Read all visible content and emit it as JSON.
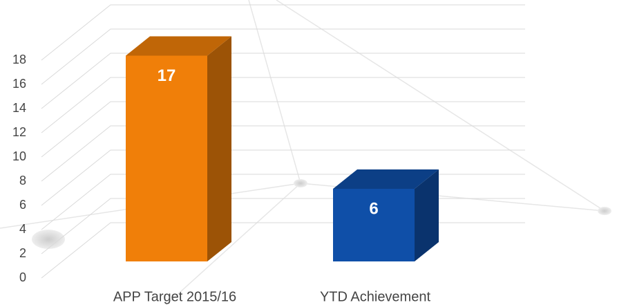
{
  "chart_data": {
    "type": "bar3d",
    "categories": [
      "APP Target 2015/16",
      "YTD Achievement"
    ],
    "values": [
      17,
      6
    ],
    "colors": [
      "#f07f09",
      "#0f4fa8"
    ],
    "ylim": [
      0,
      18
    ],
    "yticks": [
      0,
      2,
      4,
      6,
      8,
      10,
      12,
      14,
      16,
      18
    ],
    "grid": true
  }
}
